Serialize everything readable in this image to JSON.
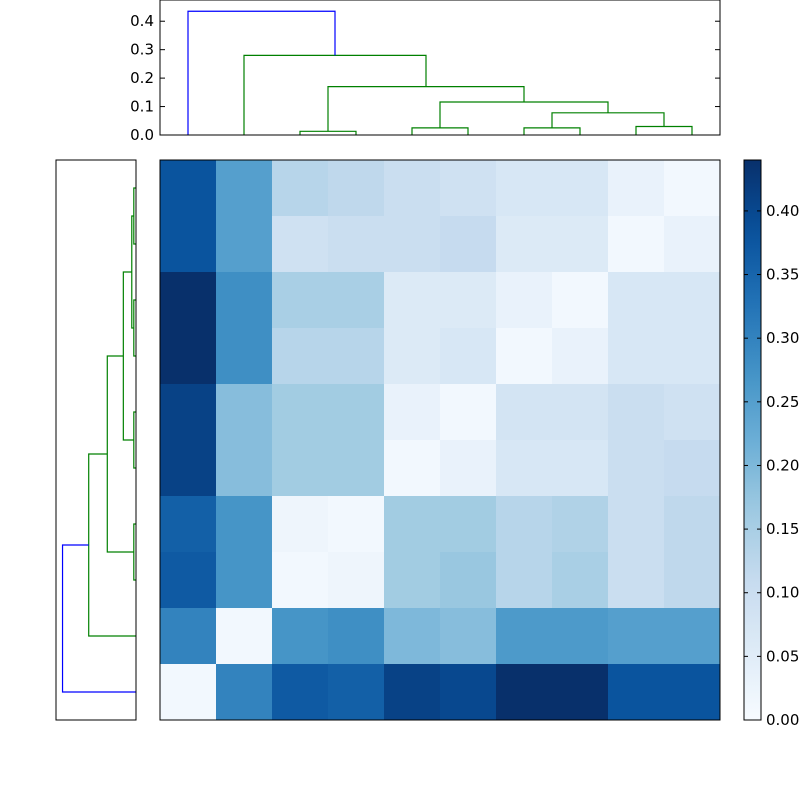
{
  "chart_data": [
    {
      "panel": "top-dendrogram",
      "type": "dendrogram",
      "orientation": "top",
      "ylim": [
        0,
        0.45
      ],
      "yticks": [
        0.0,
        0.1,
        0.2,
        0.3,
        0.4
      ],
      "ytick_labels": [
        "0.0",
        "0.1",
        "0.2",
        "0.3",
        "0.4"
      ],
      "leaves": 10,
      "links": [
        {
          "left": 2,
          "right": 3,
          "height": 0.013,
          "color": "#008000"
        },
        {
          "left": 4,
          "right": 5,
          "height": 0.025,
          "color": "#008000"
        },
        {
          "left": 6,
          "right": 7,
          "height": 0.025,
          "color": "#008000"
        },
        {
          "left": 8,
          "right": 9,
          "height": 0.03,
          "color": "#008000"
        },
        {
          "left": "6-7",
          "right": "8-9",
          "height": 0.078,
          "color": "#008000"
        },
        {
          "left": "4-5",
          "right": "6-9",
          "height": 0.116,
          "color": "#008000"
        },
        {
          "left": "2-3",
          "right": "4-9",
          "height": 0.17,
          "color": "#008000"
        },
        {
          "left": 1,
          "right": "2-9",
          "height": 0.28,
          "color": "#008000"
        },
        {
          "left": 0,
          "right": "1-9",
          "height": 0.435,
          "color": "#0000ff"
        }
      ]
    },
    {
      "panel": "left-dendrogram",
      "type": "dendrogram",
      "orientation": "left",
      "leaves": 10,
      "links": [
        {
          "a": 0,
          "b": 1,
          "height": 0.013,
          "color": "#008000"
        },
        {
          "a": 2,
          "b": 3,
          "height": 0.013,
          "color": "#008000"
        },
        {
          "a": "0-1",
          "b": "2-3",
          "height": 0.025,
          "color": "#008000"
        },
        {
          "a": 4,
          "b": 5,
          "height": 0.013,
          "color": "#008000"
        },
        {
          "a": "0-3",
          "b": "4-5",
          "height": 0.075,
          "color": "#008000"
        },
        {
          "a": 6,
          "b": 7,
          "height": 0.013,
          "color": "#008000"
        },
        {
          "a": "0-5",
          "b": "6-7",
          "height": 0.17,
          "color": "#008000"
        },
        {
          "a": "0-7",
          "b": 8,
          "height": 0.28,
          "color": "#008000"
        },
        {
          "a": "0-8",
          "b": 9,
          "height": 0.435,
          "color": "#0000ff"
        }
      ]
    },
    {
      "panel": "heatmap",
      "type": "heatmap",
      "colormap": "Blues",
      "vmin": 0.0,
      "vmax": 0.44,
      "rows": 10,
      "cols": 10,
      "values": [
        [
          0.38,
          0.25,
          0.13,
          0.12,
          0.1,
          0.09,
          0.07,
          0.07,
          0.03,
          0.01
        ],
        [
          0.38,
          0.25,
          0.09,
          0.1,
          0.1,
          0.11,
          0.06,
          0.06,
          0.01,
          0.03
        ],
        [
          0.44,
          0.28,
          0.15,
          0.15,
          0.06,
          0.06,
          0.03,
          0.01,
          0.07,
          0.07
        ],
        [
          0.44,
          0.28,
          0.13,
          0.13,
          0.06,
          0.07,
          0.01,
          0.03,
          0.07,
          0.07
        ],
        [
          0.41,
          0.19,
          0.16,
          0.16,
          0.03,
          0.01,
          0.08,
          0.08,
          0.1,
          0.09
        ],
        [
          0.41,
          0.19,
          0.16,
          0.16,
          0.01,
          0.03,
          0.07,
          0.07,
          0.1,
          0.11
        ],
        [
          0.36,
          0.27,
          0.02,
          0.01,
          0.16,
          0.16,
          0.13,
          0.14,
          0.1,
          0.12
        ],
        [
          0.37,
          0.27,
          0.01,
          0.02,
          0.16,
          0.17,
          0.13,
          0.15,
          0.1,
          0.12
        ],
        [
          0.3,
          0.01,
          0.27,
          0.28,
          0.2,
          0.19,
          0.26,
          0.26,
          0.25,
          0.25
        ],
        [
          0.01,
          0.3,
          0.37,
          0.36,
          0.41,
          0.4,
          0.44,
          0.44,
          0.38,
          0.38
        ]
      ]
    },
    {
      "panel": "colorbar",
      "type": "colorbar",
      "range": [
        0.0,
        0.44
      ],
      "ticks": [
        0.0,
        0.05,
        0.1,
        0.15,
        0.2,
        0.25,
        0.3,
        0.35,
        0.4
      ],
      "tick_labels": [
        "0.00",
        "0.05",
        "0.10",
        "0.15",
        "0.20",
        "0.25",
        "0.30",
        "0.35",
        "0.40"
      ]
    }
  ]
}
